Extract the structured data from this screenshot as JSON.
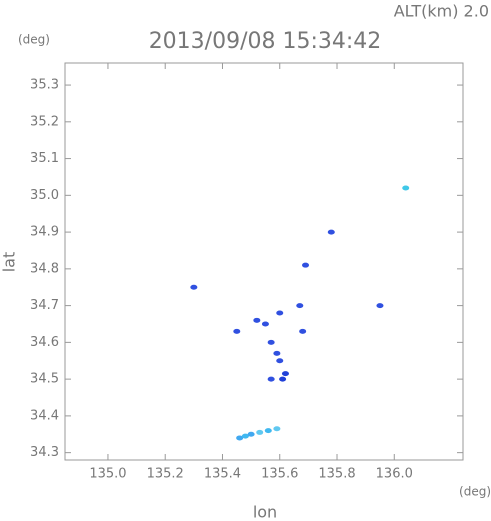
{
  "chart_data": {
    "type": "scatter",
    "title": "2013/09/08 15:34:42",
    "subtitle": "ALT(km) 2.0",
    "y_unit": "(deg)",
    "x_unit": "(deg)",
    "x_label": "lon",
    "y_label": "lat",
    "xlim": [
      134.85,
      136.24
    ],
    "ylim": [
      34.28,
      35.36
    ],
    "xticks": [
      {
        "value": 135.0,
        "label": "135.0"
      },
      135.2,
      135.4,
      135.6,
      135.8,
      {
        "value": 136.0,
        "label": "136.0"
      }
    ],
    "yticks": [
      34.3,
      34.4,
      34.5,
      34.6,
      34.7,
      34.8,
      34.9,
      {
        "value": 35.0,
        "label": "35.0"
      },
      35.1,
      35.2,
      35.3
    ],
    "x": [
      135.3,
      135.69,
      135.78,
      135.95,
      136.04,
      135.45,
      135.67,
      135.6,
      135.55,
      135.52,
      135.68,
      135.59,
      135.6,
      135.57,
      135.62,
      135.61,
      135.57,
      135.46,
      135.48,
      135.5,
      135.53,
      135.56,
      135.59
    ],
    "values": [
      34.75,
      34.81,
      34.9,
      34.7,
      35.02,
      34.63,
      34.7,
      34.68,
      34.65,
      34.66,
      34.63,
      34.57,
      34.55,
      34.6,
      34.515,
      34.5,
      34.5,
      34.34,
      34.345,
      34.35,
      34.355,
      34.36,
      34.365
    ],
    "point_colors": [
      "#3050e0",
      "#3050e0",
      "#3050e0",
      "#3050e0",
      "#40c8e8",
      "#3050e0",
      "#3050e0",
      "#3050e0",
      "#3050e0",
      "#3050e0",
      "#3050e0",
      "#3050e0",
      "#3050e0",
      "#3050e0",
      "#2040d8",
      "#2040d8",
      "#3050e0",
      "#40a8f0",
      "#40b8f0",
      "#40a8f0",
      "#60c8f0",
      "#40b8f0",
      "#60c8f0"
    ]
  }
}
